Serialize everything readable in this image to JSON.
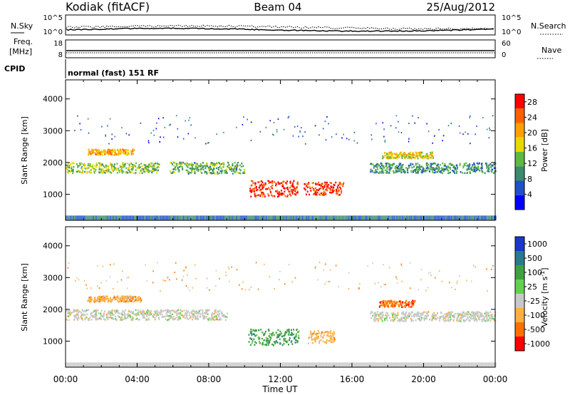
{
  "header": {
    "station": "Kodiak (fitACF)",
    "beam": "Beam 04",
    "date": "25/Aug/2012"
  },
  "top_panels": {
    "nsky_label": "N.Sky",
    "nsky_ticks": [
      "10^5",
      "10^0"
    ],
    "nsearch_label": "N.Search",
    "nsearch_ticks": [
      "10^5",
      "10^0"
    ],
    "freq_label": "Freq.",
    "freq_unit": "[MHz]",
    "freq_ticks": [
      "18",
      "8"
    ],
    "nave_label": "Nave",
    "nave_ticks": [
      "60",
      "0"
    ],
    "cpid_label": "CPID",
    "cpid_text": "normal (fast) 151 RF"
  },
  "chart_data": [
    {
      "type": "heatmap",
      "title": "",
      "xlabel": "Time UT",
      "ylabel": "Slant Range [km]",
      "x_ticks": [
        "00:00",
        "04:00",
        "08:00",
        "12:00",
        "16:00",
        "20:00",
        "00:00"
      ],
      "x_hours": [
        0,
        4,
        8,
        12,
        16,
        20,
        24
      ],
      "xlim_hours": [
        0,
        24
      ],
      "y_ticks": [
        1000,
        2000,
        3000,
        4000
      ],
      "ylim": [
        180,
        4600
      ],
      "colorbar": {
        "label": "Power [dB]",
        "ticks": [
          4,
          8,
          12,
          16,
          20,
          24,
          28
        ],
        "range": [
          0,
          30
        ],
        "colors": [
          "#0000ff",
          "#2050c8",
          "#3a8a6e",
          "#60b844",
          "#e8d800",
          "#ffa000",
          "#ff6000",
          "#ff0000"
        ]
      },
      "features": [
        {
          "t0": 0.0,
          "t1": 5.2,
          "r": 1850,
          "w": 160,
          "val": 14
        },
        {
          "t0": 1.2,
          "t1": 3.8,
          "r": 2350,
          "w": 90,
          "val": 20
        },
        {
          "t0": 5.8,
          "t1": 10.0,
          "r": 1850,
          "w": 180,
          "val": 12
        },
        {
          "t0": 10.2,
          "t1": 13.0,
          "r": 1200,
          "w": 250,
          "val": 27
        },
        {
          "t0": 13.3,
          "t1": 15.5,
          "r": 1200,
          "w": 200,
          "val": 26
        },
        {
          "t0": 17.0,
          "t1": 24.0,
          "r": 1850,
          "w": 160,
          "val": 10
        },
        {
          "t0": 17.6,
          "t1": 20.5,
          "r": 2250,
          "w": 100,
          "val": 17
        }
      ]
    },
    {
      "type": "heatmap",
      "title": "",
      "xlabel": "Time UT",
      "ylabel": "Slant Range [km]",
      "x_ticks": [
        "00:00",
        "04:00",
        "08:00",
        "12:00",
        "16:00",
        "20:00",
        "00:00"
      ],
      "x_hours": [
        0,
        4,
        8,
        12,
        16,
        20,
        24
      ],
      "xlim_hours": [
        0,
        24
      ],
      "y_ticks": [
        1000,
        2000,
        3000,
        4000
      ],
      "ylim": [
        180,
        4600
      ],
      "colorbar": {
        "label": "Velocity [m s^-1]",
        "ticks": [
          "1000",
          "500",
          "100",
          "25",
          "-25",
          "-100",
          "-500",
          "-1000"
        ],
        "colors": [
          "#1838c8",
          "#2a7a8c",
          "#40a040",
          "#64d050",
          "#c8c8c8",
          "#ffb040",
          "#ff7000",
          "#ff0000"
        ]
      },
      "features": [
        {
          "t0": 0.0,
          "t1": 9.0,
          "r": 1850,
          "w": 160,
          "val": "-25"
        },
        {
          "t0": 1.2,
          "t1": 4.2,
          "r": 2350,
          "w": 90,
          "val": "-100"
        },
        {
          "t0": 10.2,
          "t1": 13.0,
          "r": 1150,
          "w": 250,
          "val": "100"
        },
        {
          "t0": 13.5,
          "t1": 15.0,
          "r": 1150,
          "w": 200,
          "val": "-100"
        },
        {
          "t0": 17.0,
          "t1": 24.0,
          "r": 1800,
          "w": 150,
          "val": "-25"
        },
        {
          "t0": 17.5,
          "t1": 19.5,
          "r": 2200,
          "w": 100,
          "val": "-500"
        }
      ]
    }
  ]
}
